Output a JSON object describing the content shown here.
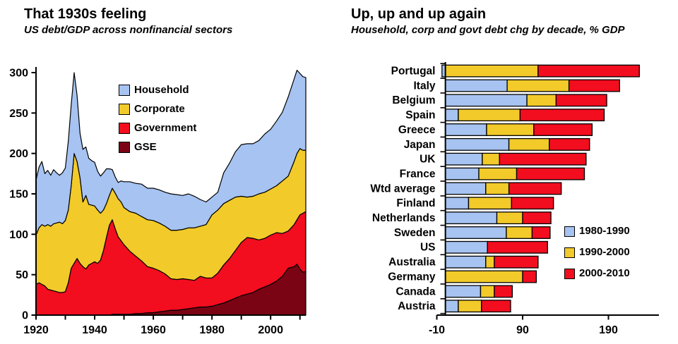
{
  "chart_data": [
    {
      "type": "area",
      "stacked": true,
      "title": "That 1930s feeling",
      "subtitle": "US debt/GDP across nonfinancial sectors",
      "ylabel": "",
      "xlabel": "",
      "ylim": [
        0,
        300
      ],
      "yticks": [
        0,
        50,
        100,
        150,
        200,
        250,
        300
      ],
      "xticks": [
        1920,
        1930,
        1940,
        1950,
        1960,
        1970,
        1980,
        1990,
        2000,
        2010
      ],
      "xtick_labels": [
        1920,
        1940,
        1960,
        1980,
        2000
      ],
      "grid": false,
      "legend_position": "inside-upper-left",
      "years": [
        1920,
        1921,
        1922,
        1923,
        1924,
        1925,
        1926,
        1927,
        1928,
        1929,
        1930,
        1931,
        1932,
        1933,
        1934,
        1935,
        1936,
        1937,
        1938,
        1939,
        1940,
        1941,
        1942,
        1943,
        1944,
        1945,
        1946,
        1947,
        1948,
        1949,
        1950,
        1952,
        1954,
        1956,
        1958,
        1960,
        1962,
        1964,
        1966,
        1968,
        1970,
        1972,
        1974,
        1976,
        1978,
        1980,
        1982,
        1984,
        1986,
        1988,
        1990,
        1992,
        1994,
        1996,
        1998,
        2000,
        2002,
        2004,
        2006,
        2008,
        2009,
        2010,
        2011,
        2012
      ],
      "series": [
        {
          "name": "GSE",
          "color": "#7a0413",
          "values": [
            0,
            0,
            0,
            0,
            0,
            0,
            0,
            0,
            0,
            0,
            0,
            0,
            0,
            0,
            0,
            0,
            0,
            0,
            0,
            0,
            0,
            0,
            0,
            0,
            0,
            0,
            1,
            1,
            1,
            1,
            1,
            1,
            2,
            2,
            3,
            3,
            4,
            5,
            6,
            6,
            7,
            8,
            9,
            10,
            10,
            11,
            13,
            15,
            18,
            21,
            24,
            26,
            28,
            32,
            35,
            38,
            42,
            48,
            58,
            60,
            63,
            57,
            53,
            54
          ]
        },
        {
          "name": "Government",
          "color": "#f20d1f",
          "values": [
            38,
            40,
            38,
            36,
            32,
            31,
            30,
            29,
            28,
            28,
            29,
            40,
            58,
            64,
            70,
            64,
            60,
            57,
            62,
            64,
            66,
            64,
            68,
            80,
            96,
            111,
            117,
            106,
            96,
            91,
            86,
            78,
            71,
            65,
            57,
            55,
            51,
            46,
            39,
            38,
            38,
            36,
            34,
            38,
            36,
            35,
            39,
            47,
            52,
            59,
            66,
            70,
            67,
            61,
            60,
            61,
            60,
            53,
            46,
            52,
            55,
            67,
            73,
            74
          ]
        },
        {
          "name": "Corporate",
          "color": "#f2ca2a",
          "values": [
            61,
            68,
            74,
            74,
            80,
            79,
            83,
            85,
            87,
            85,
            88,
            90,
            102,
            136,
            120,
            106,
            80,
            91,
            75,
            72,
            69,
            66,
            58,
            50,
            42,
            37,
            39,
            44,
            47,
            48,
            46,
            49,
            53,
            55,
            58,
            59,
            59,
            59,
            60,
            61,
            61,
            64,
            65,
            62,
            66,
            78,
            78,
            76,
            72,
            66,
            57,
            50,
            52,
            57,
            57,
            57,
            58,
            65,
            68,
            78,
            82,
            82,
            78,
            76
          ]
        },
        {
          "name": "Household",
          "color": "#a6c3f1",
          "values": [
            68,
            75,
            78,
            65,
            67,
            63,
            67,
            62,
            58,
            63,
            65,
            85,
            100,
            100,
            82,
            55,
            65,
            60,
            57,
            55,
            54,
            48,
            46,
            46,
            43,
            33,
            23,
            20,
            20,
            26,
            32,
            37,
            37,
            40,
            39,
            40,
            41,
            42,
            45,
            44,
            42,
            42,
            39,
            33,
            28,
            22,
            22,
            38,
            46,
            56,
            64,
            66,
            65,
            66,
            72,
            74,
            80,
            85,
            98,
            102,
            103,
            93,
            91,
            90
          ]
        }
      ],
      "legend": [
        {
          "label": "Household",
          "color": "#a6c3f1"
        },
        {
          "label": "Corporate",
          "color": "#f2ca2a"
        },
        {
          "label": "Government",
          "color": "#f20d1f"
        },
        {
          "label": "GSE",
          "color": "#7a0413"
        }
      ]
    },
    {
      "type": "bar",
      "orientation": "horizontal",
      "stacked": true,
      "title": "Up, up and up again",
      "subtitle": "Household, corp and govt debt chg by decade, % GDP",
      "xlim": [
        -10,
        240
      ],
      "xticks": [
        -10,
        90,
        190
      ],
      "grid": false,
      "legend_position": "inside-right",
      "categories": [
        "Portugal",
        "Italy",
        "Belgium",
        "Spain",
        "Greece",
        "Japan",
        "UK",
        "France",
        "Wtd average",
        "Finland",
        "Netherlands",
        "Sweden",
        "US",
        "Australia",
        "Germany",
        "Canada",
        "Austria"
      ],
      "series": [
        {
          "name": "1980-1990",
          "color": "#a6c3f1",
          "values": [
            -4,
            72,
            95,
            15,
            48,
            74,
            43,
            39,
            47,
            27,
            60,
            71,
            49,
            47,
            0,
            41,
            15
          ]
        },
        {
          "name": "1990-2000",
          "color": "#f2ca2a",
          "values": [
            108,
            72,
            34,
            72,
            55,
            47,
            20,
            44,
            27,
            50,
            30,
            30,
            0,
            10,
            90,
            16,
            27
          ]
        },
        {
          "name": "2000-2010",
          "color": "#f20d1f",
          "values": [
            118,
            59,
            59,
            98,
            68,
            47,
            101,
            79,
            61,
            49,
            33,
            21,
            70,
            51,
            16,
            21,
            34
          ]
        }
      ],
      "legend": [
        {
          "label": "1980-1990",
          "color": "#a6c3f1"
        },
        {
          "label": "1990-2000",
          "color": "#f2ca2a"
        },
        {
          "label": "2000-2010",
          "color": "#f20d1f"
        }
      ]
    }
  ]
}
